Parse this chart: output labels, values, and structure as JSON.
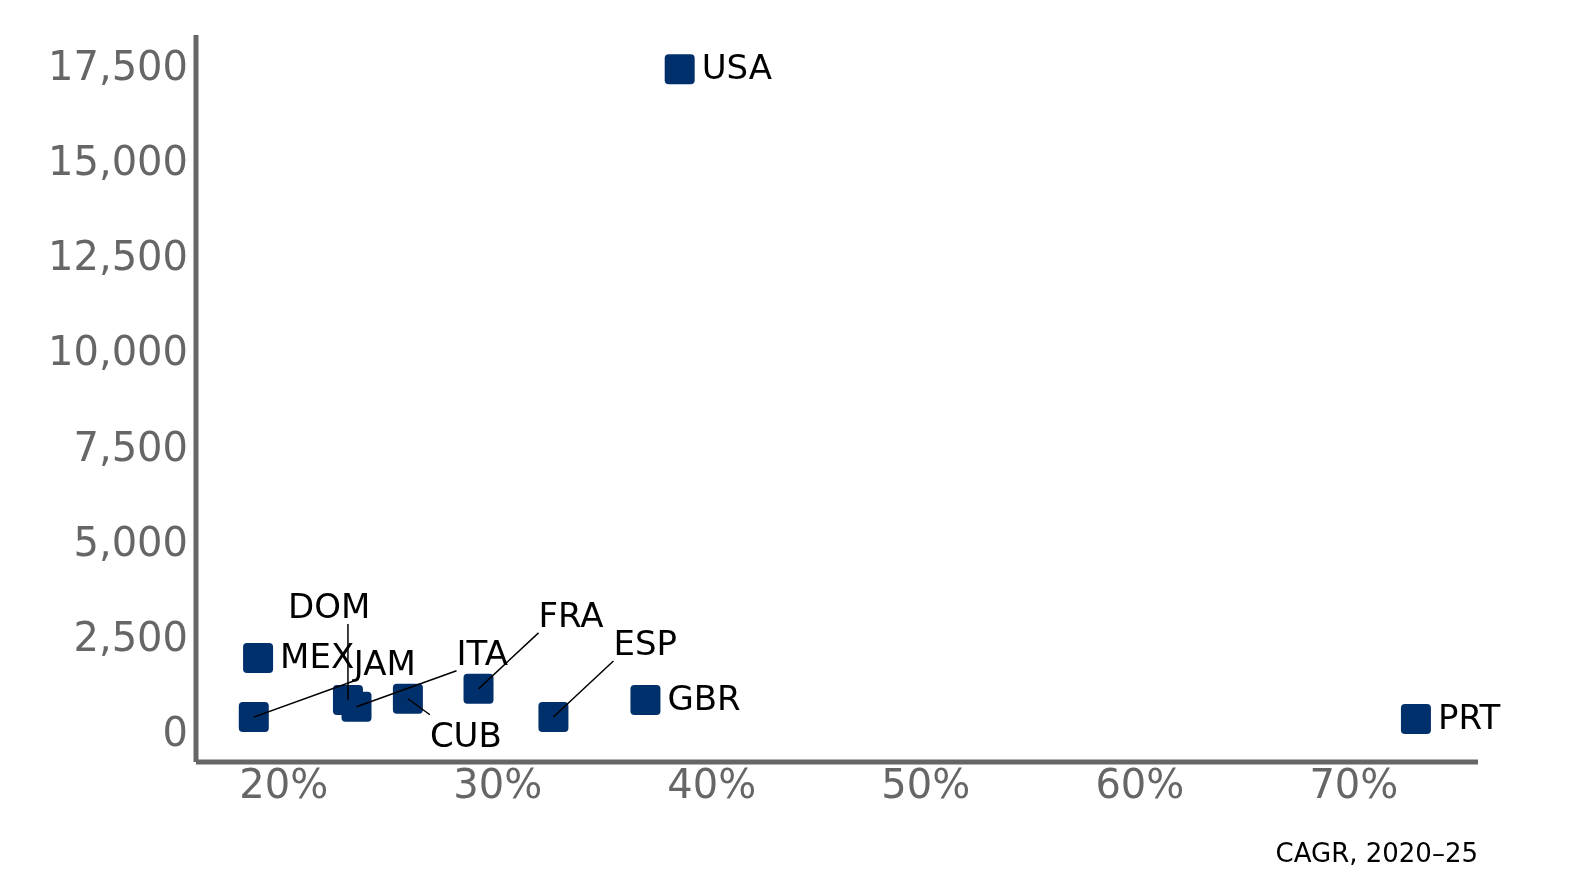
{
  "chart_data": {
    "type": "scatter",
    "xlabel": "CAGR, 2020–25",
    "x": [
      38.5,
      18.8,
      18.6,
      23.0,
      23.4,
      25.8,
      29.1,
      32.6,
      36.9,
      72.9
    ],
    "values": [
      17400,
      1950,
      400,
      850,
      670,
      880,
      1140,
      400,
      850,
      350
    ],
    "color": "#00306b",
    "marker": "square",
    "xlim": [
      15.9,
      75.8
    ],
    "xticks": [
      {
        "value": 20,
        "label": "20%"
      },
      {
        "value": 30,
        "label": "30%"
      },
      {
        "value": 40,
        "label": "40%"
      },
      {
        "value": 50,
        "label": "50%"
      },
      {
        "value": 60,
        "label": "60%"
      },
      {
        "value": 70,
        "label": "70%"
      }
    ],
    "ylim": [
      -780,
      18300
    ],
    "yticks": [
      0,
      {
        "value": 2500,
        "label": "2,500"
      },
      {
        "value": 5000,
        "label": "5,000"
      },
      {
        "value": 7500,
        "label": "7,500"
      },
      {
        "value": 10000,
        "label": "10,000"
      },
      {
        "value": 12500,
        "label": "12,500"
      },
      {
        "value": 15000,
        "label": "15,000"
      },
      {
        "value": 17500,
        "label": "17,500"
      }
    ],
    "grid": false,
    "annotations": [
      {
        "text": "USA",
        "x": 38.5,
        "y": 17400
      },
      {
        "text": "MEX",
        "x": 18.8,
        "y": 1950
      },
      {
        "text": "JAM",
        "x": 18.6,
        "y": 400
      },
      {
        "text": "DOM",
        "x": 23.0,
        "y": 850
      },
      {
        "text": "ITA",
        "x": 23.4,
        "y": 670
      },
      {
        "text": "CUB",
        "x": 25.8,
        "y": 880
      },
      {
        "text": "FRA",
        "x": 29.1,
        "y": 1140
      },
      {
        "text": "ESP",
        "x": 32.6,
        "y": 400
      },
      {
        "text": "GBR",
        "x": 36.9,
        "y": 850
      },
      {
        "text": "PRT",
        "x": 72.9,
        "y": 350
      }
    ]
  }
}
